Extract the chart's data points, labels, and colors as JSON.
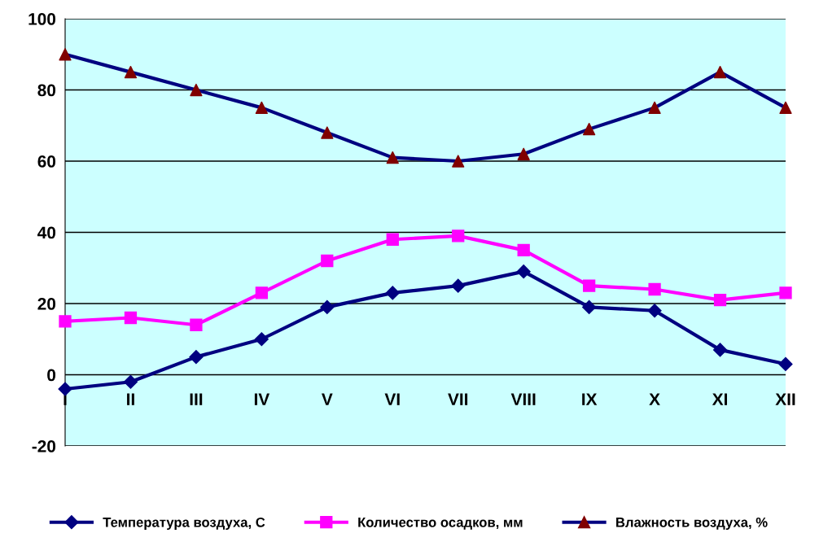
{
  "chart_data": {
    "type": "line",
    "categories": [
      "I",
      "II",
      "III",
      "IV",
      "V",
      "VI",
      "VII",
      "VIII",
      "IX",
      "X",
      "XI",
      "XII"
    ],
    "series": [
      {
        "name": "Температура воздуха, С",
        "color": "#000080",
        "marker": "diamond",
        "values": [
          -4,
          -2,
          5,
          10,
          19,
          23,
          25,
          29,
          19,
          18,
          7,
          3
        ]
      },
      {
        "name": "Количество осадков, мм",
        "color": "#ff00ff",
        "marker": "square",
        "values": [
          15,
          16,
          14,
          23,
          32,
          38,
          39,
          35,
          25,
          24,
          21,
          23
        ]
      },
      {
        "name": "Влажность воздуха, %",
        "color": "#000080",
        "marker": "triangle",
        "colors": [
          "#800000",
          "#800000",
          "#800000",
          "#800000",
          "#800000",
          "#800000",
          "#800000",
          "#800000",
          "#800000",
          "#800000",
          "#800000",
          "#800000"
        ],
        "values": [
          90,
          85,
          80,
          75,
          68,
          61,
          60,
          62,
          69,
          75,
          85,
          75
        ]
      }
    ],
    "ylim": [
      -20,
      100
    ],
    "yticks": [
      -20,
      0,
      20,
      40,
      60,
      80,
      100
    ],
    "grid": "y",
    "legend": "bottom",
    "line_style": "solid"
  }
}
